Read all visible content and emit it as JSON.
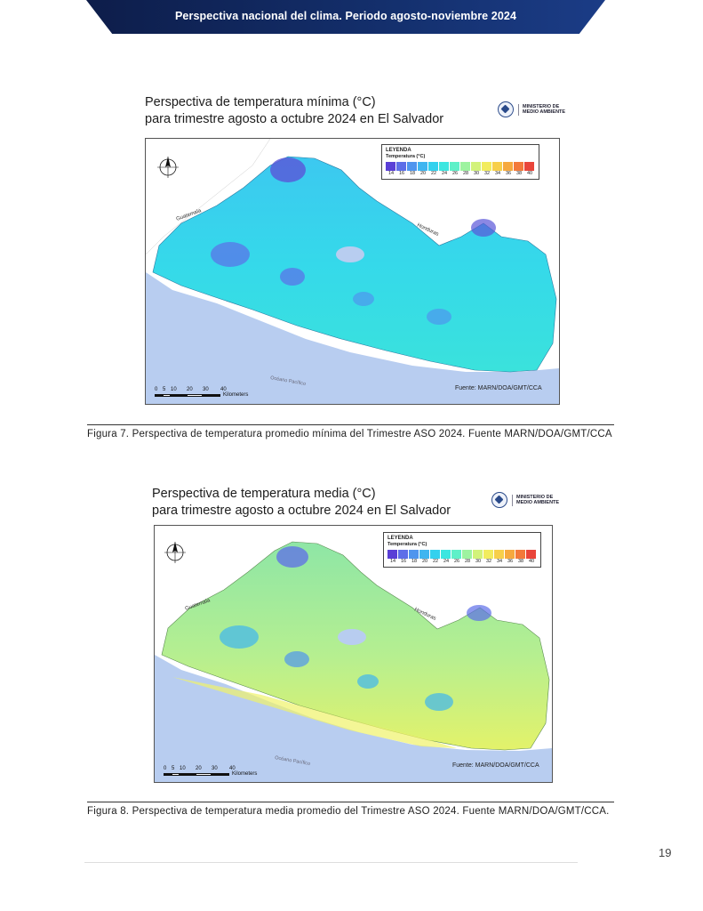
{
  "header": {
    "title": "Perspectiva nacional del clima. Periodo agosto-noviembre 2024"
  },
  "figures": [
    {
      "title_line1": "Perspectiva de temperatura mínima (°C)",
      "title_line2": "para trimestre agosto a octubre 2024 en El Salvador",
      "ministry": "MINISTERIO DE MEDIO AMBIENTE",
      "legend_title": "LEYENDA",
      "legend_subtitle": "Temperatura (°C)",
      "legend_values": [
        "14",
        "16",
        "18",
        "20",
        "22",
        "24",
        "26",
        "28",
        "30",
        "32",
        "34",
        "36",
        "38",
        "40"
      ],
      "legend_colors": [
        "#5a3fd6",
        "#5d6ee8",
        "#4f95ee",
        "#3fb5f0",
        "#33d1ee",
        "#3de6e0",
        "#5ef0c8",
        "#9df3a0",
        "#d2f27a",
        "#f2ec5e",
        "#f7cf4a",
        "#f6a93e",
        "#f3793a",
        "#e9453a"
      ],
      "source": "Fuente: MARN/DOA/GMT/CCA",
      "scale_ticks": [
        "0",
        "5",
        "10",
        "20",
        "30",
        "40"
      ],
      "scale_unit": "Kilometers",
      "country_guatemala": "Guatemala",
      "country_honduras": "Honduras",
      "ocean": "Océano Pacífico",
      "caption": "Figura 7. Perspectiva de temperatura promedio mínima del Trimestre ASO 2024. Fuente MARN/DOA/GMT/CCA"
    },
    {
      "title_line1": "Perspectiva de temperatura media (°C)",
      "title_line2": "para trimestre agosto a octubre 2024 en El Salvador",
      "ministry": "MINISTERIO DE MEDIO AMBIENTE",
      "legend_title": "LEYENDA",
      "legend_subtitle": "Temperatura (°C)",
      "legend_values": [
        "14",
        "16",
        "18",
        "20",
        "22",
        "24",
        "26",
        "28",
        "30",
        "32",
        "34",
        "36",
        "38",
        "40"
      ],
      "legend_colors": [
        "#5a3fd6",
        "#5d6ee8",
        "#4f95ee",
        "#3fb5f0",
        "#33d1ee",
        "#3de6e0",
        "#5ef0c8",
        "#9df3a0",
        "#d2f27a",
        "#f2ec5e",
        "#f7cf4a",
        "#f6a93e",
        "#f3793a",
        "#e9453a"
      ],
      "source": "Fuente: MARN/DOA/GMT/CCA",
      "scale_ticks": [
        "0",
        "5",
        "10",
        "20",
        "30",
        "40"
      ],
      "scale_unit": "Kilometers",
      "country_guatemala": "Guatemala",
      "country_honduras": "Honduras",
      "ocean": "Océano Pacífico",
      "caption": "Figura 8. Perspectiva de temperatura media promedio del Trimestre ASO 2024. Fuente MARN/DOA/GMT/CCA."
    }
  ],
  "page_number": "19"
}
